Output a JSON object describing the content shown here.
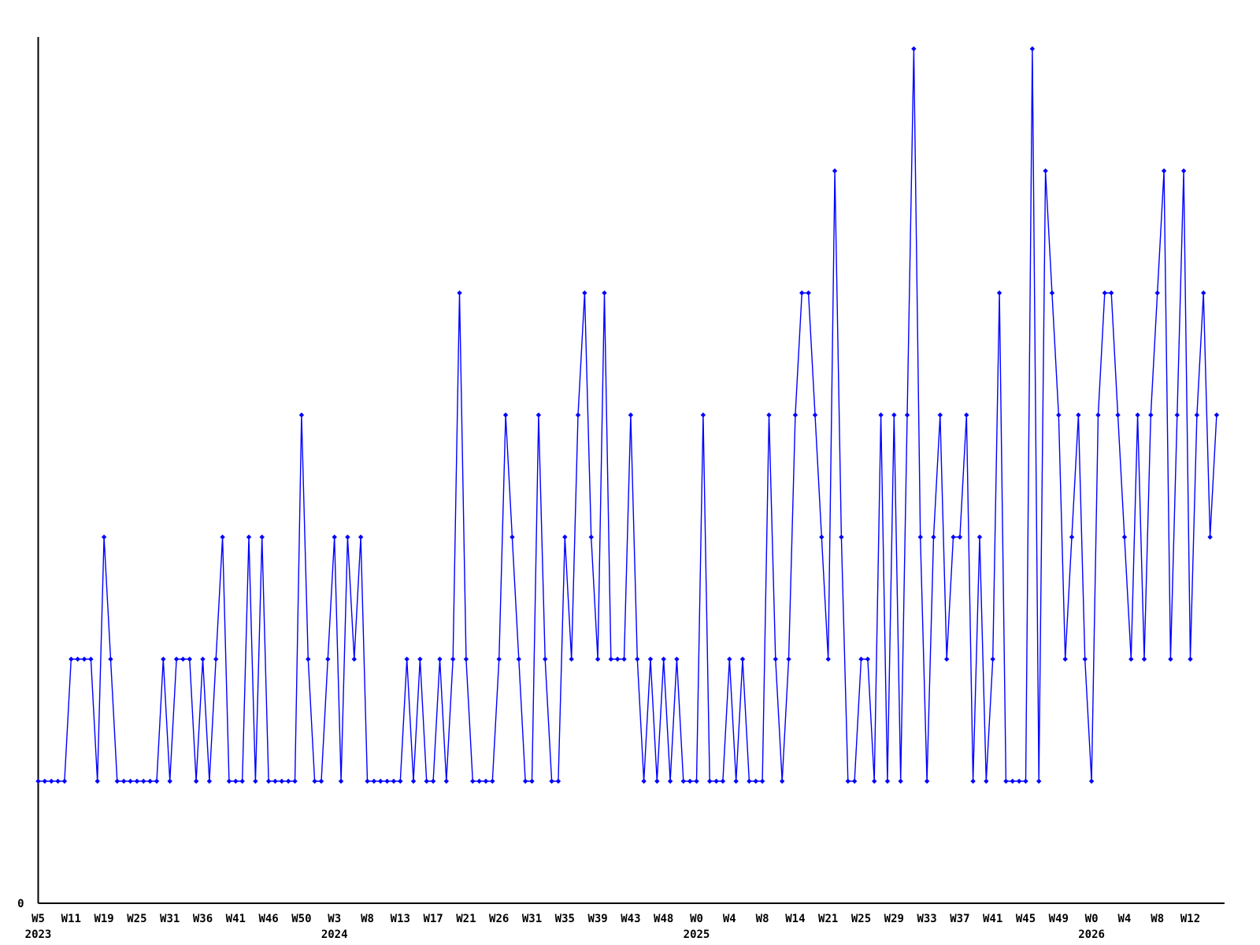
{
  "page": {
    "title": "",
    "background_color": "#ffffff"
  },
  "y_axis": {
    "zero_label": "0"
  },
  "colors": {
    "line": "#0000ff",
    "marker": "#0000ff",
    "axis": "#000000",
    "text": "#000000"
  },
  "chart_data": {
    "type": "line",
    "title": "",
    "xlabel": "",
    "ylabel": "",
    "legend": null,
    "grid": false,
    "marker": "diamond",
    "points_per_tick": 5,
    "ylim": [
      0,
      7.4
    ],
    "y_tick_labels": [
      "0"
    ],
    "x_tick_labels": [
      {
        "week": "W5",
        "year": "2023"
      },
      {
        "week": "W11",
        "year": null
      },
      {
        "week": "W19",
        "year": null
      },
      {
        "week": "W25",
        "year": null
      },
      {
        "week": "W31",
        "year": null
      },
      {
        "week": "W36",
        "year": null
      },
      {
        "week": "W41",
        "year": null
      },
      {
        "week": "W46",
        "year": null
      },
      {
        "week": "W50",
        "year": null
      },
      {
        "week": "W3",
        "year": "2024"
      },
      {
        "week": "W8",
        "year": null
      },
      {
        "week": "W13",
        "year": null
      },
      {
        "week": "W17",
        "year": null
      },
      {
        "week": "W21",
        "year": null
      },
      {
        "week": "W26",
        "year": null
      },
      {
        "week": "W31",
        "year": null
      },
      {
        "week": "W35",
        "year": null
      },
      {
        "week": "W39",
        "year": null
      },
      {
        "week": "W43",
        "year": null
      },
      {
        "week": "W48",
        "year": null
      },
      {
        "week": "W0",
        "year": "2025"
      },
      {
        "week": "W4",
        "year": null
      },
      {
        "week": "W8",
        "year": null
      },
      {
        "week": "W14",
        "year": null
      },
      {
        "week": "W21",
        "year": null
      },
      {
        "week": "W25",
        "year": null
      },
      {
        "week": "W29",
        "year": null
      },
      {
        "week": "W33",
        "year": null
      },
      {
        "week": "W37",
        "year": null
      },
      {
        "week": "W41",
        "year": null
      },
      {
        "week": "W45",
        "year": null
      },
      {
        "week": "W49",
        "year": null
      },
      {
        "week": "W0",
        "year": "2026"
      },
      {
        "week": "W4",
        "year": null
      },
      {
        "week": "W8",
        "year": null
      },
      {
        "week": "W12",
        "year": null
      }
    ],
    "values": [
      1,
      1,
      1,
      1,
      1,
      2,
      2,
      2,
      2,
      1,
      3,
      2,
      1,
      1,
      1,
      1,
      1,
      1,
      1,
      2,
      1,
      2,
      2,
      2,
      1,
      2,
      1,
      2,
      3,
      1,
      1,
      1,
      3,
      1,
      3,
      1,
      1,
      1,
      1,
      1,
      4,
      2,
      1,
      1,
      2,
      3,
      1,
      3,
      2,
      3,
      1,
      1,
      1,
      1,
      1,
      1,
      2,
      1,
      2,
      1,
      1,
      2,
      1,
      2,
      5,
      2,
      1,
      1,
      1,
      1,
      2,
      4,
      3,
      2,
      1,
      1,
      4,
      2,
      1,
      1,
      3,
      2,
      4,
      5,
      3,
      2,
      5,
      2,
      2,
      2,
      4,
      2,
      1,
      2,
      1,
      2,
      1,
      2,
      1,
      1,
      1,
      4,
      1,
      1,
      1,
      2,
      1,
      2,
      1,
      1,
      1,
      4,
      2,
      1,
      2,
      4,
      5,
      5,
      4,
      3,
      2,
      6,
      3,
      1,
      1,
      2,
      2,
      1,
      4,
      1,
      4,
      1,
      4,
      7,
      3,
      1,
      3,
      4,
      2,
      3,
      3,
      4,
      1,
      3,
      1,
      2,
      5,
      1,
      1,
      1,
      1,
      7,
      1,
      6,
      5,
      4,
      2,
      3,
      4,
      2,
      1,
      4,
      5,
      5,
      4,
      3,
      2,
      4,
      2,
      4,
      5,
      6,
      2,
      4,
      6,
      2,
      4,
      5,
      3,
      4
    ]
  }
}
